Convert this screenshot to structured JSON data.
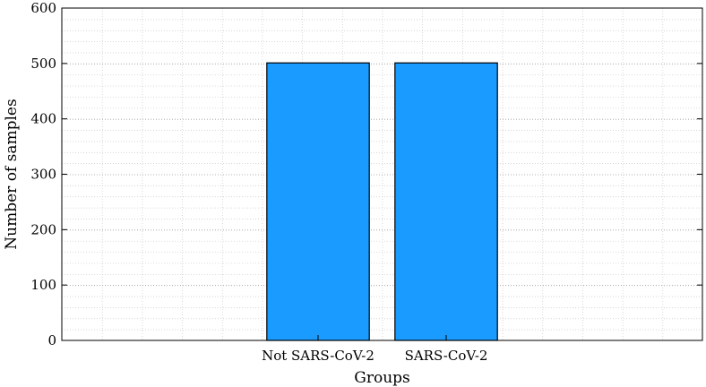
{
  "chart_data": {
    "type": "bar",
    "categories": [
      "Not SARS-CoV-2",
      "SARS-CoV-2"
    ],
    "values": [
      501,
      501
    ],
    "title": "",
    "xlabel": "Groups",
    "ylabel": "Number of samples",
    "ylim": [
      0,
      600
    ],
    "yticks": [
      0,
      100,
      200,
      300,
      400,
      500,
      600
    ],
    "grid": true,
    "bar_color": "#1a9bff",
    "bar_edge_color": "#000000"
  }
}
